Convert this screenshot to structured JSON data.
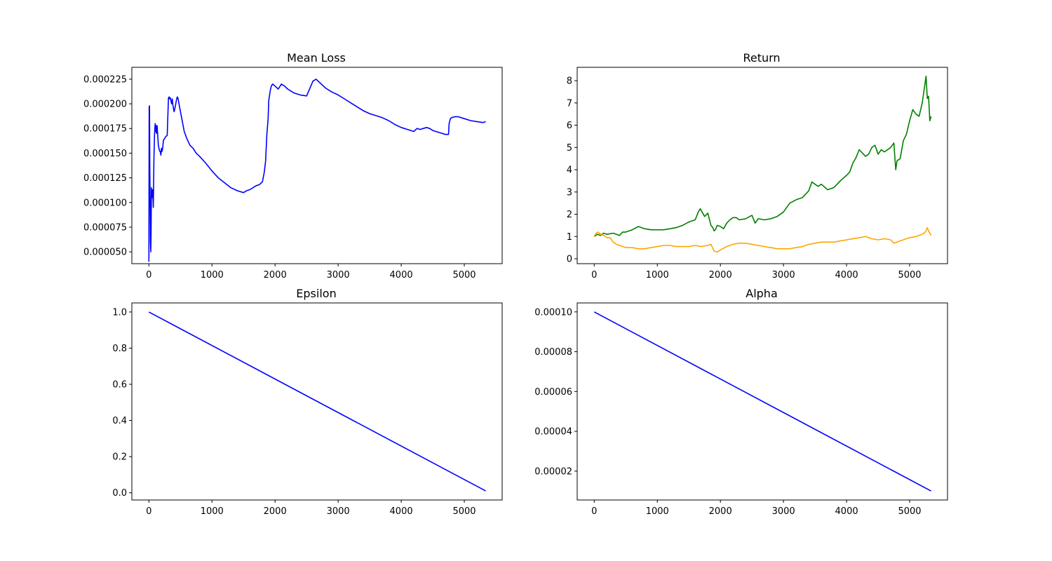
{
  "chart_data": [
    {
      "type": "line",
      "title": "Mean Loss",
      "xlabel": "",
      "ylabel": "",
      "xlim": [
        -270,
        5600
      ],
      "ylim": [
        3.8e-05,
        0.000237
      ],
      "xticks": [
        0,
        1000,
        2000,
        3000,
        4000,
        5000
      ],
      "xtick_labels": [
        "0",
        "1000",
        "2000",
        "3000",
        "4000",
        "5000"
      ],
      "yticks": [
        5e-05,
        7.5e-05,
        0.0001,
        0.000125,
        0.00015,
        0.000175,
        0.0002,
        0.000225
      ],
      "ytick_labels": [
        "0.000050",
        "0.000075",
        "0.000100",
        "0.000125",
        "0.000150",
        "0.000175",
        "0.000200",
        "0.000225"
      ],
      "grid": false,
      "series": [
        {
          "color": "#0000ff",
          "x": [
            0,
            5,
            10,
            15,
            20,
            25,
            30,
            35,
            40,
            50,
            60,
            70,
            80,
            90,
            95,
            100,
            105,
            110,
            120,
            130,
            140,
            150,
            160,
            170,
            180,
            190,
            200,
            210,
            220,
            230,
            240,
            250,
            270,
            290,
            310,
            320,
            330,
            340,
            350,
            360,
            370,
            380,
            390,
            400,
            420,
            440,
            450,
            460,
            480,
            500,
            530,
            560,
            600,
            650,
            700,
            750,
            800,
            900,
            1000,
            1100,
            1200,
            1300,
            1400,
            1500,
            1550,
            1600,
            1650,
            1700,
            1750,
            1800,
            1830,
            1850,
            1870,
            1890,
            1900,
            1920,
            1940,
            1960,
            1980,
            2000,
            2050,
            2100,
            2150,
            2200,
            2250,
            2300,
            2400,
            2500,
            2600,
            2650,
            2700,
            2800,
            2900,
            3000,
            3100,
            3200,
            3300,
            3400,
            3500,
            3600,
            3700,
            3800,
            3900,
            4000,
            4100,
            4200,
            4250,
            4300,
            4350,
            4400,
            4450,
            4500,
            4600,
            4700,
            4750,
            4760,
            4780,
            4800,
            4850,
            4900,
            5000,
            5100,
            5200,
            5300,
            5340
          ],
          "y": [
            4e-05,
            0.000197,
            0.000198,
            0.000135,
            0.0001,
            6e-05,
            5e-05,
            7e-05,
            0.000115,
            0.000105,
            0.000113,
            9.5e-05,
            0.000145,
            0.00017,
            0.000175,
            0.00018,
            0.000172,
            0.000178,
            0.00017,
            0.000178,
            0.000168,
            0.000158,
            0.000155,
            0.000152,
            0.000152,
            0.000148,
            0.000155,
            0.000152,
            0.000156,
            0.000163,
            0.000164,
            0.000165,
            0.000167,
            0.000168,
            0.000206,
            0.000207,
            0.000205,
            0.000206,
            0.000203,
            0.0002,
            0.000205,
            0.000199,
            0.000195,
            0.000192,
            0.000198,
            0.000205,
            0.000207,
            0.000206,
            0.000199,
            0.000192,
            0.000182,
            0.000172,
            0.000165,
            0.000158,
            0.000155,
            0.00015,
            0.000147,
            0.00014,
            0.000132,
            0.000125,
            0.00012,
            0.000115,
            0.000112,
            0.00011,
            0.000112,
            0.000113,
            0.000115,
            0.000117,
            0.000118,
            0.000121,
            0.000131,
            0.000142,
            0.000169,
            0.000185,
            0.000203,
            0.000212,
            0.000218,
            0.00022,
            0.000219,
            0.000218,
            0.000215,
            0.00022,
            0.000218,
            0.000215,
            0.000213,
            0.000211,
            0.000209,
            0.000208,
            0.000223,
            0.000225,
            0.000222,
            0.000216,
            0.000212,
            0.000209,
            0.000205,
            0.000201,
            0.000197,
            0.000193,
            0.00019,
            0.000188,
            0.000186,
            0.000183,
            0.000179,
            0.000176,
            0.000174,
            0.000172,
            0.000175,
            0.000174,
            0.000175,
            0.000176,
            0.000175,
            0.000173,
            0.000171,
            0.000169,
            0.000169,
            0.00018,
            0.000185,
            0.000186,
            0.000187,
            0.000187,
            0.000185,
            0.000183,
            0.000182,
            0.000181,
            0.000182
          ]
        }
      ]
    },
    {
      "type": "line",
      "title": "Return",
      "xlabel": "",
      "ylabel": "",
      "xlim": [
        -270,
        5600
      ],
      "ylim": [
        -0.22,
        8.6
      ],
      "xticks": [
        0,
        1000,
        2000,
        3000,
        4000,
        5000
      ],
      "xtick_labels": [
        "0",
        "1000",
        "2000",
        "3000",
        "4000",
        "5000"
      ],
      "yticks": [
        0,
        1,
        2,
        3,
        4,
        5,
        6,
        7,
        8
      ],
      "ytick_labels": [
        "0",
        "1",
        "2",
        "3",
        "4",
        "5",
        "6",
        "7",
        "8"
      ],
      "grid": false,
      "series": [
        {
          "color": "#008000",
          "x": [
            0,
            50,
            100,
            150,
            200,
            300,
            400,
            450,
            500,
            600,
            700,
            750,
            800,
            900,
            1000,
            1100,
            1200,
            1300,
            1400,
            1500,
            1550,
            1600,
            1650,
            1680,
            1700,
            1750,
            1800,
            1850,
            1880,
            1900,
            1920,
            1950,
            2000,
            2050,
            2100,
            2150,
            2200,
            2250,
            2300,
            2400,
            2500,
            2550,
            2600,
            2700,
            2800,
            2900,
            3000,
            3100,
            3200,
            3300,
            3400,
            3450,
            3500,
            3550,
            3600,
            3700,
            3800,
            3900,
            4000,
            4050,
            4100,
            4150,
            4200,
            4250,
            4300,
            4350,
            4400,
            4450,
            4500,
            4550,
            4600,
            4700,
            4750,
            4780,
            4800,
            4850,
            4900,
            4950,
            5000,
            5050,
            5100,
            5150,
            5200,
            5230,
            5260,
            5280,
            5300,
            5320,
            5340
          ],
          "y": [
            1.0,
            1.1,
            1.05,
            1.15,
            1.1,
            1.15,
            1.05,
            1.2,
            1.2,
            1.3,
            1.45,
            1.4,
            1.35,
            1.3,
            1.3,
            1.3,
            1.35,
            1.4,
            1.5,
            1.65,
            1.7,
            1.75,
            2.1,
            2.25,
            2.15,
            1.9,
            2.05,
            1.5,
            1.4,
            1.25,
            1.3,
            1.5,
            1.45,
            1.35,
            1.6,
            1.75,
            1.85,
            1.85,
            1.75,
            1.8,
            1.95,
            1.6,
            1.8,
            1.75,
            1.8,
            1.9,
            2.1,
            2.5,
            2.65,
            2.75,
            3.05,
            3.45,
            3.35,
            3.25,
            3.35,
            3.1,
            3.2,
            3.5,
            3.75,
            3.9,
            4.3,
            4.55,
            4.9,
            4.75,
            4.6,
            4.7,
            5.0,
            5.1,
            4.7,
            4.9,
            4.8,
            5.0,
            5.2,
            4.0,
            4.4,
            4.5,
            5.3,
            5.6,
            6.2,
            6.7,
            6.5,
            6.4,
            7.0,
            7.6,
            8.2,
            7.2,
            7.3,
            6.2,
            6.4
          ]
        },
        {
          "color": "#ffa500",
          "x": [
            0,
            30,
            60,
            100,
            150,
            200,
            250,
            300,
            350,
            400,
            500,
            600,
            700,
            800,
            900,
            1000,
            1100,
            1200,
            1300,
            1400,
            1500,
            1600,
            1700,
            1800,
            1850,
            1900,
            1950,
            2000,
            2100,
            2200,
            2300,
            2400,
            2500,
            2600,
            2700,
            2800,
            2900,
            3000,
            3100,
            3200,
            3300,
            3400,
            3500,
            3600,
            3700,
            3800,
            3900,
            4000,
            4100,
            4200,
            4300,
            4400,
            4500,
            4600,
            4700,
            4750,
            4800,
            4900,
            5000,
            5100,
            5200,
            5250,
            5280,
            5300,
            5320,
            5340
          ],
          "y": [
            1.0,
            1.15,
            1.2,
            1.1,
            1.05,
            0.95,
            0.95,
            0.75,
            0.65,
            0.6,
            0.5,
            0.5,
            0.45,
            0.45,
            0.5,
            0.55,
            0.6,
            0.6,
            0.55,
            0.55,
            0.55,
            0.6,
            0.55,
            0.6,
            0.65,
            0.35,
            0.3,
            0.4,
            0.55,
            0.65,
            0.7,
            0.7,
            0.65,
            0.6,
            0.55,
            0.5,
            0.45,
            0.45,
            0.45,
            0.5,
            0.55,
            0.65,
            0.7,
            0.75,
            0.75,
            0.75,
            0.8,
            0.85,
            0.9,
            0.95,
            1.0,
            0.9,
            0.85,
            0.9,
            0.85,
            0.7,
            0.75,
            0.85,
            0.95,
            1.0,
            1.1,
            1.2,
            1.4,
            1.25,
            1.15,
            1.05
          ]
        }
      ]
    },
    {
      "type": "line",
      "title": "Epsilon",
      "xlabel": "",
      "ylabel": "",
      "xlim": [
        -270,
        5600
      ],
      "ylim": [
        -0.04,
        1.05
      ],
      "xticks": [
        0,
        1000,
        2000,
        3000,
        4000,
        5000
      ],
      "xtick_labels": [
        "0",
        "1000",
        "2000",
        "3000",
        "4000",
        "5000"
      ],
      "yticks": [
        0,
        0.2,
        0.4,
        0.6,
        0.8,
        1.0
      ],
      "ytick_labels": [
        "0.0",
        "0.2",
        "0.4",
        "0.6",
        "0.8",
        "1.0"
      ],
      "grid": false,
      "series": [
        {
          "color": "#0000ff",
          "x": [
            0,
            5340
          ],
          "y": [
            1.0,
            0.01
          ]
        }
      ]
    },
    {
      "type": "line",
      "title": "Alpha",
      "xlabel": "",
      "ylabel": "",
      "xlim": [
        -270,
        5600
      ],
      "ylim": [
        5.5e-06,
        0.0001045
      ],
      "xticks": [
        0,
        1000,
        2000,
        3000,
        4000,
        5000
      ],
      "xtick_labels": [
        "0",
        "1000",
        "2000",
        "3000",
        "4000",
        "5000"
      ],
      "yticks": [
        2e-05,
        4e-05,
        6e-05,
        8e-05,
        0.0001
      ],
      "ytick_labels": [
        "0.00002",
        "0.00004",
        "0.00006",
        "0.00008",
        "0.00010"
      ],
      "grid": false,
      "series": [
        {
          "color": "#0000ff",
          "x": [
            0,
            5340
          ],
          "y": [
            0.0001,
            1e-05
          ]
        }
      ]
    }
  ]
}
